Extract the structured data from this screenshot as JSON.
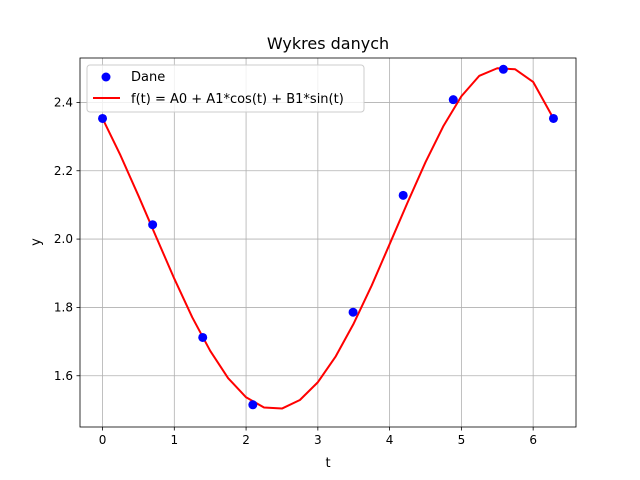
{
  "chart_data": {
    "type": "scatter",
    "title": "Wykres danych",
    "xlabel": "t",
    "ylabel": "y",
    "xlim": [
      -0.314,
      6.597
    ],
    "ylim": [
      1.45,
      2.53
    ],
    "xticks": [
      0,
      1,
      2,
      3,
      4,
      5,
      6
    ],
    "yticks": [
      1.6,
      1.8,
      2.0,
      2.2,
      2.4
    ],
    "grid": true,
    "legend_position": "top-left",
    "series": [
      {
        "name": "Dane",
        "kind": "scatter",
        "color": "#0000ff",
        "x": [
          0.0,
          0.698,
          1.396,
          2.094,
          3.491,
          4.189,
          4.887,
          5.585,
          6.283
        ],
        "y": [
          2.353,
          2.042,
          1.712,
          1.515,
          1.786,
          2.128,
          2.408,
          2.497,
          2.353
        ]
      },
      {
        "name": "f(t) = A0 + A1*cos(t) + B1*sin(t)",
        "kind": "line",
        "color": "#ff0000",
        "x": [
          0.0,
          0.25,
          0.5,
          0.75,
          1.0,
          1.25,
          1.5,
          1.75,
          2.0,
          2.25,
          2.5,
          2.75,
          3.0,
          3.25,
          3.5,
          3.75,
          4.0,
          4.25,
          4.5,
          4.75,
          5.0,
          5.25,
          5.5,
          5.75,
          6.0,
          6.283
        ],
        "y": [
          2.353,
          2.245,
          2.127,
          2.005,
          1.884,
          1.771,
          1.673,
          1.593,
          1.537,
          1.507,
          1.504,
          1.529,
          1.581,
          1.657,
          1.753,
          1.864,
          1.985,
          2.107,
          2.225,
          2.331,
          2.418,
          2.478,
          2.5,
          2.497,
          2.46,
          2.353
        ]
      }
    ]
  }
}
